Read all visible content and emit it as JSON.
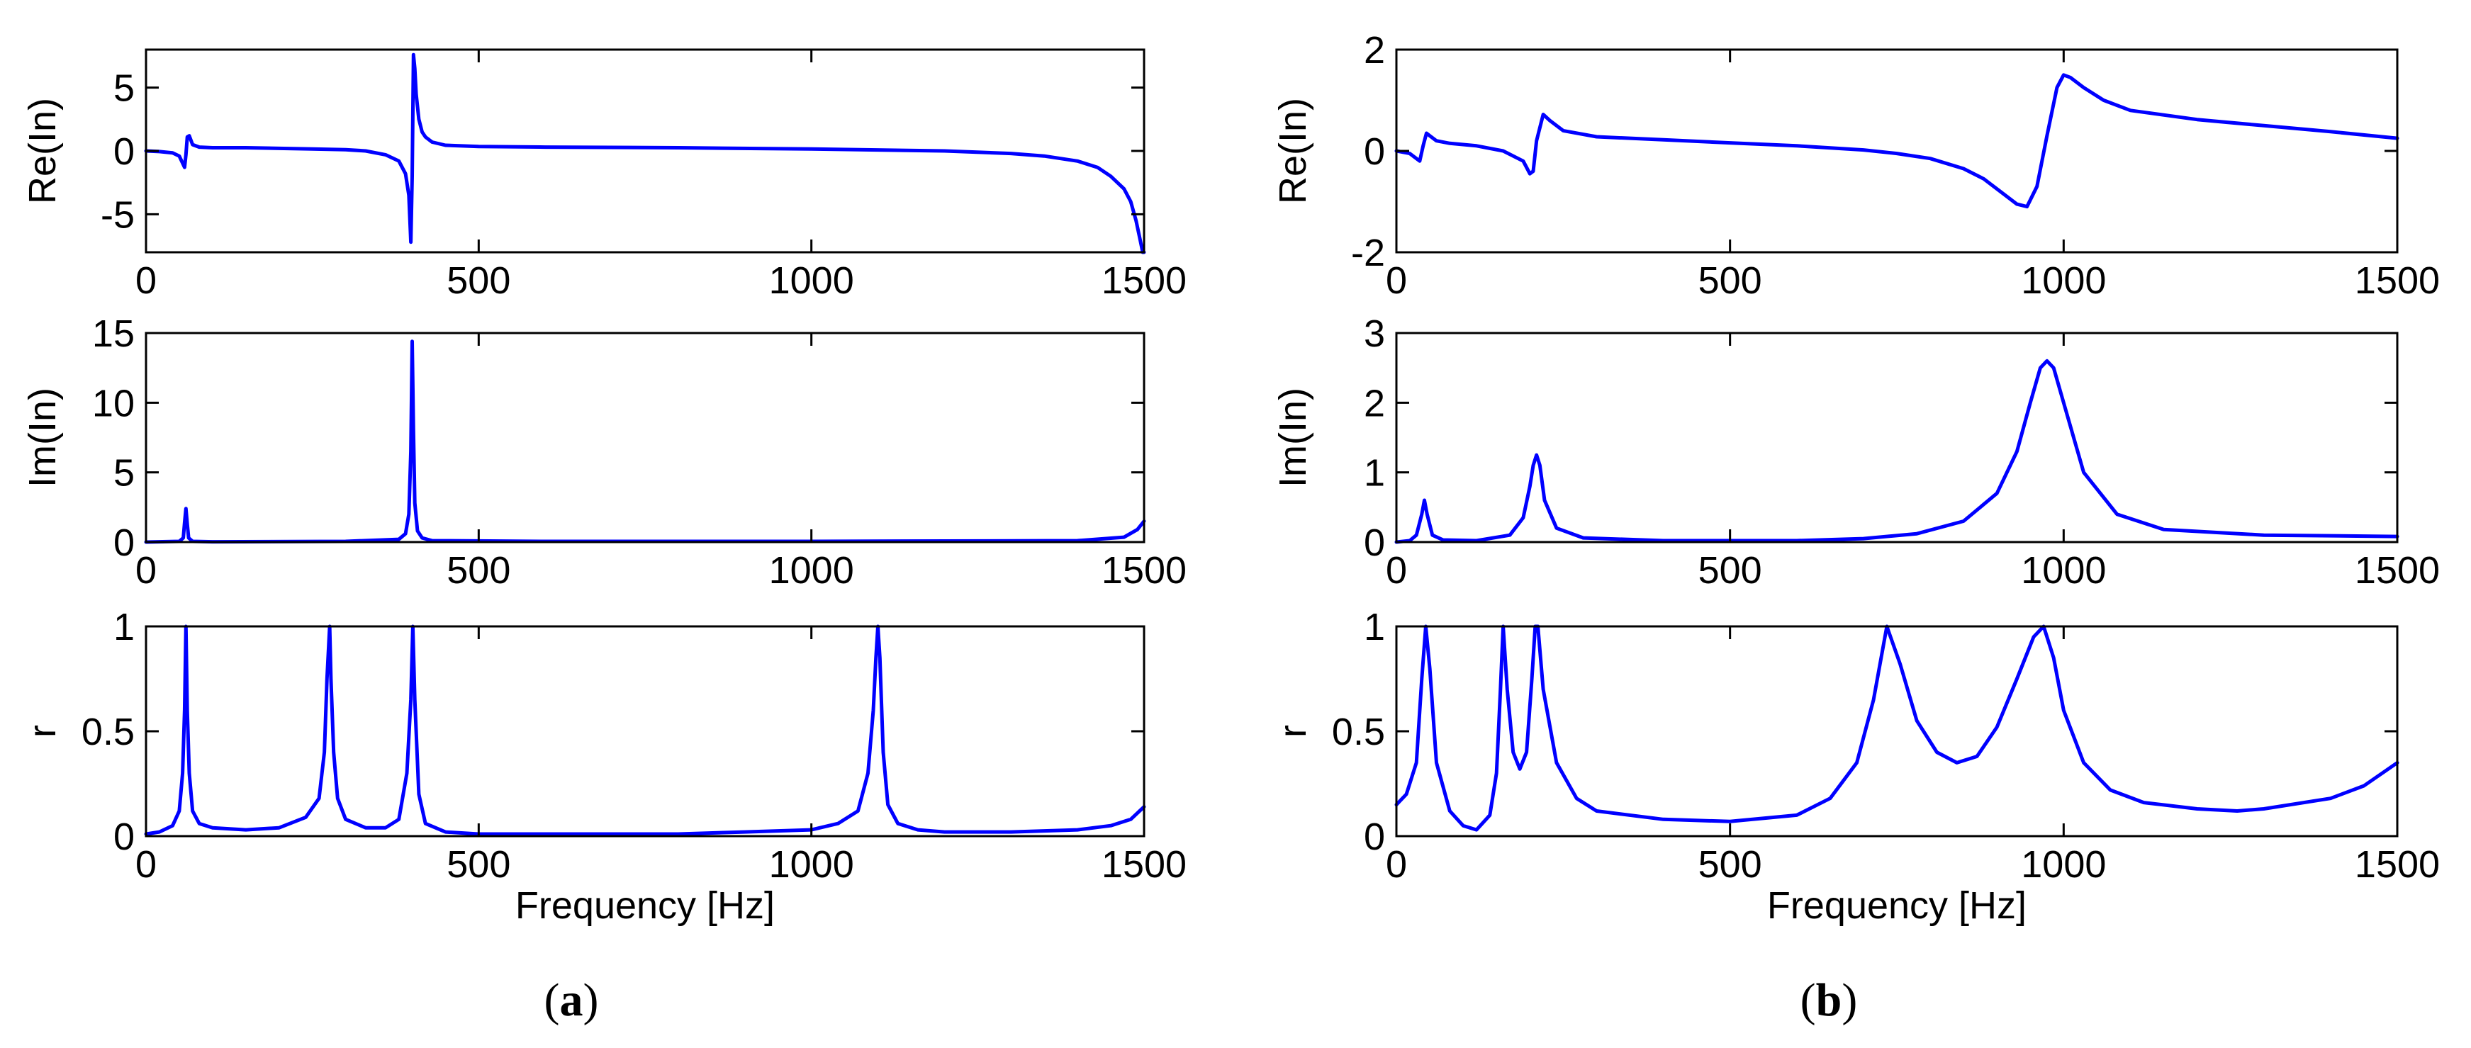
{
  "colors": {
    "line": "#0000ff",
    "axis": "#000000",
    "background": "#ffffff"
  },
  "chart_data": [
    {
      "panel": "a",
      "type": "line",
      "ylabel": "Re(In)",
      "xlabel": "",
      "xlim": [
        0,
        1500
      ],
      "ylim": [
        -8,
        8
      ],
      "xticks": [
        0,
        500,
        1000,
        1500
      ],
      "xtick_labels": [
        "0",
        "500",
        "1000",
        "1500"
      ],
      "yticks": [
        -5,
        0,
        5
      ],
      "ytick_labels": [
        "-5",
        "0",
        "5"
      ],
      "series": [
        {
          "name": "Re(In)",
          "x": [
            0,
            20,
            40,
            50,
            58,
            60,
            62,
            65,
            70,
            80,
            100,
            150,
            200,
            250,
            300,
            330,
            360,
            380,
            390,
            395,
            398,
            400,
            402,
            404,
            406,
            410,
            415,
            420,
            430,
            450,
            500,
            600,
            800,
            1000,
            1200,
            1300,
            1350,
            1400,
            1430,
            1450,
            1470,
            1480,
            1488,
            1494,
            1498,
            1500
          ],
          "y": [
            0,
            -0.05,
            -0.15,
            -0.4,
            -1.3,
            -0.3,
            1.1,
            1.2,
            0.5,
            0.3,
            0.25,
            0.25,
            0.2,
            0.15,
            0.1,
            0,
            -0.3,
            -0.8,
            -1.8,
            -3.5,
            -7.2,
            -2,
            7.6,
            6.5,
            4.5,
            2.5,
            1.5,
            1.1,
            0.7,
            0.45,
            0.35,
            0.3,
            0.25,
            0.15,
            0,
            -0.2,
            -0.4,
            -0.8,
            -1.3,
            -2,
            -3,
            -4,
            -5.5,
            -7,
            -8,
            -8
          ]
        }
      ]
    },
    {
      "panel": "a",
      "type": "line",
      "ylabel": "Im(In)",
      "xlabel": "",
      "xlim": [
        0,
        1500
      ],
      "ylim": [
        0,
        15
      ],
      "xticks": [
        0,
        500,
        1000,
        1500
      ],
      "xtick_labels": [
        "0",
        "500",
        "1000",
        "1500"
      ],
      "yticks": [
        0,
        5,
        10,
        15
      ],
      "ytick_labels": [
        "0",
        "5",
        "10",
        "15"
      ],
      "series": [
        {
          "name": "Im(In)",
          "x": [
            0,
            50,
            56,
            58,
            60,
            62,
            64,
            70,
            100,
            300,
            380,
            390,
            395,
            398,
            400,
            402,
            404,
            408,
            415,
            430,
            600,
            1000,
            1400,
            1470,
            1490,
            1500
          ],
          "y": [
            0,
            0.05,
            0.3,
            1.4,
            2.4,
            1.3,
            0.3,
            0.05,
            0.02,
            0.05,
            0.2,
            0.6,
            2,
            6.5,
            14.4,
            8,
            2.8,
            0.8,
            0.3,
            0.1,
            0.05,
            0.05,
            0.1,
            0.35,
            0.9,
            1.5
          ]
        }
      ]
    },
    {
      "panel": "a",
      "type": "line",
      "ylabel": "r",
      "xlabel": "Frequency [Hz]",
      "xlim": [
        0,
        1500
      ],
      "ylim": [
        0,
        1
      ],
      "xticks": [
        0,
        500,
        1000,
        1500
      ],
      "xtick_labels": [
        "0",
        "500",
        "1000",
        "1500"
      ],
      "yticks": [
        0,
        0.5,
        1
      ],
      "ytick_labels": [
        "0",
        "0.5",
        "1"
      ],
      "series": [
        {
          "name": "r",
          "x": [
            0,
            20,
            40,
            50,
            55,
            58,
            60,
            62,
            65,
            70,
            80,
            100,
            150,
            200,
            240,
            260,
            268,
            272,
            276,
            278,
            282,
            288,
            300,
            330,
            360,
            380,
            392,
            398,
            401,
            404,
            410,
            420,
            450,
            500,
            600,
            700,
            800,
            900,
            1000,
            1040,
            1070,
            1085,
            1093,
            1097,
            1100,
            1103,
            1108,
            1115,
            1130,
            1160,
            1200,
            1300,
            1400,
            1450,
            1480,
            1490,
            1500
          ],
          "y": [
            0.01,
            0.02,
            0.05,
            0.12,
            0.3,
            0.6,
            1,
            0.6,
            0.3,
            0.12,
            0.06,
            0.04,
            0.03,
            0.04,
            0.09,
            0.18,
            0.4,
            0.75,
            1,
            0.75,
            0.4,
            0.18,
            0.08,
            0.04,
            0.04,
            0.08,
            0.3,
            0.65,
            1,
            0.65,
            0.2,
            0.06,
            0.02,
            0.01,
            0.01,
            0.01,
            0.01,
            0.02,
            0.03,
            0.06,
            0.12,
            0.3,
            0.6,
            0.85,
            1,
            0.85,
            0.4,
            0.15,
            0.06,
            0.03,
            0.02,
            0.02,
            0.03,
            0.05,
            0.08,
            0.11,
            0.14
          ]
        }
      ]
    },
    {
      "panel": "b",
      "type": "line",
      "ylabel": "Re(In)",
      "xlabel": "",
      "xlim": [
        0,
        1500
      ],
      "ylim": [
        -2,
        2
      ],
      "xticks": [
        0,
        500,
        1000,
        1500
      ],
      "xtick_labels": [
        "0",
        "500",
        "1000",
        "1500"
      ],
      "yticks": [
        -2,
        0,
        2
      ],
      "ytick_labels": [
        "-2",
        "0",
        "2"
      ],
      "series": [
        {
          "name": "Re(In)",
          "x": [
            0,
            20,
            35,
            40,
            45,
            50,
            60,
            80,
            120,
            160,
            190,
            200,
            205,
            210,
            220,
            230,
            250,
            300,
            400,
            500,
            600,
            700,
            750,
            800,
            850,
            880,
            910,
            930,
            945,
            960,
            975,
            990,
            1000,
            1010,
            1030,
            1060,
            1100,
            1200,
            1300,
            1400,
            1500
          ],
          "y": [
            0,
            -0.05,
            -0.2,
            0.1,
            0.35,
            0.3,
            0.2,
            0.15,
            0.1,
            0,
            -0.2,
            -0.45,
            -0.4,
            0.2,
            0.72,
            0.6,
            0.4,
            0.28,
            0.22,
            0.16,
            0.1,
            0.02,
            -0.05,
            -0.15,
            -0.35,
            -0.55,
            -0.85,
            -1.05,
            -1.1,
            -0.7,
            0.3,
            1.25,
            1.5,
            1.45,
            1.25,
            1.0,
            0.8,
            0.62,
            0.5,
            0.38,
            0.25
          ]
        }
      ]
    },
    {
      "panel": "b",
      "type": "line",
      "ylabel": "Im(In)",
      "xlabel": "",
      "xlim": [
        0,
        1500
      ],
      "ylim": [
        0,
        3
      ],
      "xticks": [
        0,
        500,
        1000,
        1500
      ],
      "xtick_labels": [
        "0",
        "500",
        "1000",
        "1500"
      ],
      "yticks": [
        0,
        1,
        2,
        3
      ],
      "ytick_labels": [
        "0",
        "1",
        "2",
        "3"
      ],
      "series": [
        {
          "name": "Im(In)",
          "x": [
            0,
            20,
            30,
            38,
            42,
            46,
            54,
            70,
            120,
            170,
            190,
            200,
            205,
            210,
            215,
            222,
            240,
            280,
            400,
            600,
            700,
            780,
            850,
            900,
            930,
            950,
            965,
            975,
            985,
            1000,
            1030,
            1080,
            1150,
            1300,
            1500
          ],
          "y": [
            0,
            0.02,
            0.1,
            0.4,
            0.6,
            0.4,
            0.1,
            0.03,
            0.02,
            0.1,
            0.35,
            0.8,
            1.1,
            1.25,
            1.1,
            0.6,
            0.2,
            0.06,
            0.02,
            0.02,
            0.05,
            0.12,
            0.3,
            0.7,
            1.3,
            2.0,
            2.5,
            2.6,
            2.5,
            2.0,
            1.0,
            0.4,
            0.18,
            0.1,
            0.08
          ]
        }
      ]
    },
    {
      "panel": "b",
      "type": "line",
      "ylabel": "r",
      "xlabel": "Frequency [Hz]",
      "xlim": [
        0,
        1500
      ],
      "ylim": [
        0,
        1
      ],
      "xticks": [
        0,
        500,
        1000,
        1500
      ],
      "xtick_labels": [
        "0",
        "500",
        "1000",
        "1500"
      ],
      "yticks": [
        0,
        0.5,
        1
      ],
      "ytick_labels": [
        "0",
        "0.5",
        "1"
      ],
      "series": [
        {
          "name": "r",
          "x": [
            0,
            15,
            30,
            38,
            44,
            50,
            60,
            80,
            100,
            120,
            140,
            150,
            156,
            160,
            166,
            175,
            185,
            195,
            203,
            208,
            212,
            220,
            240,
            270,
            300,
            400,
            500,
            600,
            650,
            690,
            715,
            735,
            755,
            780,
            810,
            840,
            870,
            900,
            930,
            955,
            970,
            985,
            1000,
            1030,
            1070,
            1120,
            1200,
            1260,
            1300,
            1400,
            1450,
            1500
          ],
          "y": [
            0.15,
            0.2,
            0.35,
            0.75,
            1,
            0.8,
            0.35,
            0.12,
            0.05,
            0.03,
            0.1,
            0.3,
            0.7,
            1,
            0.7,
            0.4,
            0.32,
            0.4,
            0.75,
            1,
            1,
            0.7,
            0.35,
            0.18,
            0.12,
            0.08,
            0.07,
            0.1,
            0.18,
            0.35,
            0.65,
            1,
            0.82,
            0.55,
            0.4,
            0.35,
            0.38,
            0.52,
            0.75,
            0.95,
            1,
            0.85,
            0.6,
            0.35,
            0.22,
            0.16,
            0.13,
            0.12,
            0.13,
            0.18,
            0.24,
            0.35
          ]
        }
      ]
    }
  ],
  "panel_labels": [
    {
      "open": "(",
      "letter": "a",
      "close": ")"
    },
    {
      "open": "(",
      "letter": "b",
      "close": ")"
    }
  ]
}
